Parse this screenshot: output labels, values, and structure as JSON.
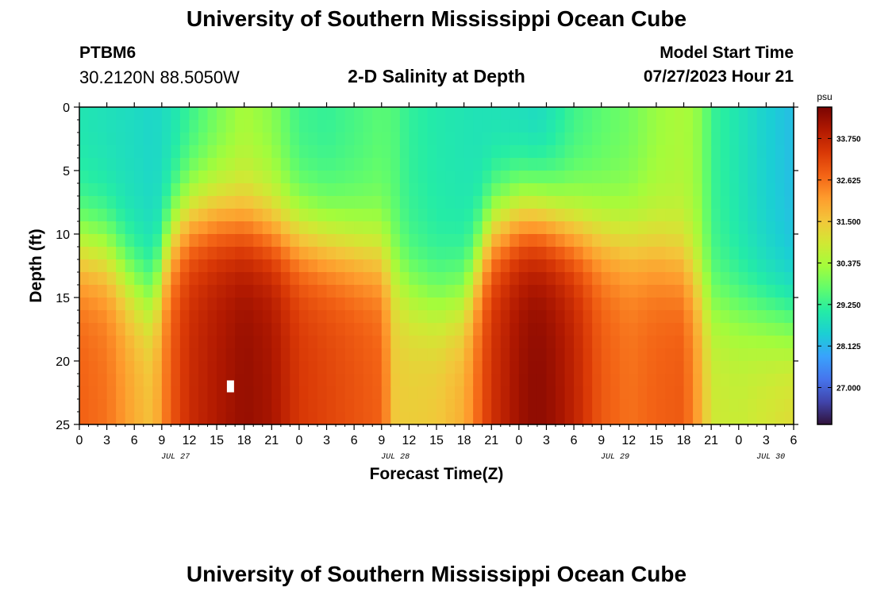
{
  "page": {
    "title_top": "University of Southern Mississippi Ocean Cube",
    "title_bottom": "University of Southern Mississippi Ocean Cube",
    "station": "PTBM6",
    "coordinates": "30.2120N  88.5050W",
    "plot_title": "2-D Salinity at Depth",
    "model_start_label": "Model Start Time",
    "model_start_value": "07/27/2023 Hour 21"
  },
  "chart_data": {
    "type": "heatmap",
    "title": "2-D Salinity at Depth",
    "xlabel": "Forecast Time(Z)",
    "ylabel": "Depth (ft)",
    "x_tick_labels": [
      "0",
      "3",
      "6",
      "9",
      "12",
      "15",
      "18",
      "21",
      "0",
      "3",
      "6",
      "9",
      "12",
      "15",
      "18",
      "21",
      "0",
      "3",
      "6",
      "9",
      "12",
      "15",
      "18",
      "21",
      "0",
      "3",
      "6"
    ],
    "x_range_hours": [
      0,
      78
    ],
    "date_labels": [
      {
        "label": "JUL 27",
        "hour": 10.5
      },
      {
        "label": "JUL 28",
        "hour": 34.5
      },
      {
        "label": "JUL 29",
        "hour": 58.5
      },
      {
        "label": "JUL 30",
        "hour": 75.5
      }
    ],
    "y_ticks": [
      0,
      5,
      10,
      15,
      20,
      25
    ],
    "ylim": [
      0,
      25
    ],
    "colorbar": {
      "unit": "psu",
      "ticks": [
        "33.750",
        "32.625",
        "31.500",
        "30.375",
        "29.250",
        "28.125",
        "27.000"
      ],
      "tick_values": [
        33.75,
        32.625,
        31.5,
        30.375,
        29.25,
        28.125,
        27.0
      ],
      "range": [
        26.0,
        34.6
      ],
      "colors": [
        "#30123b",
        "#4145ab",
        "#4675ed",
        "#39a2fc",
        "#1bcfd4",
        "#24eca6",
        "#61fc6c",
        "#a4fc3b",
        "#d1e834",
        "#f3c63a",
        "#fe9b2d",
        "#f36315",
        "#d93806",
        "#b11901",
        "#7a0402"
      ]
    },
    "salinity_model": {
      "description": "Estimated surface and bottom salinity (psu) along forecast hours; depth profile blends between them",
      "hours": [
        0,
        3,
        6,
        8,
        10,
        12,
        15,
        18,
        21,
        24,
        27,
        30,
        33,
        34.5,
        36,
        39,
        42,
        45,
        48,
        50,
        52,
        54,
        57,
        60,
        63,
        66,
        68,
        69,
        72,
        75,
        78
      ],
      "surface": [
        28.9,
        28.8,
        28.7,
        28.6,
        28.8,
        29.2,
        29.8,
        30.3,
        30.0,
        29.3,
        29.2,
        29.4,
        29.6,
        29.5,
        29.2,
        29.0,
        28.9,
        28.8,
        28.7,
        28.6,
        28.9,
        29.3,
        29.6,
        29.8,
        30.2,
        30.4,
        30.0,
        29.3,
        28.9,
        28.5,
        28.2
      ],
      "bottom": [
        32.8,
        32.6,
        31.9,
        31.6,
        32.9,
        33.6,
        34.0,
        34.3,
        34.1,
        33.4,
        33.2,
        33.0,
        32.8,
        31.5,
        31.4,
        31.5,
        31.9,
        33.5,
        34.2,
        34.4,
        34.2,
        33.8,
        32.9,
        32.6,
        32.8,
        32.9,
        31.8,
        30.9,
        30.8,
        31.0,
        31.2
      ],
      "transition_depth_ft": [
        11.0,
        11.5,
        14.0,
        15.0,
        10.0,
        8.5,
        8.5,
        9.0,
        9.5,
        10.0,
        10.5,
        11.0,
        11.5,
        13.0,
        14.5,
        15.5,
        15.0,
        9.5,
        8.5,
        8.5,
        9.0,
        9.5,
        10.0,
        10.5,
        11.0,
        12.0,
        14.0,
        15.5,
        16.0,
        16.5,
        17.0
      ]
    },
    "marker": {
      "hour": 16.5,
      "depth": 22
    }
  }
}
